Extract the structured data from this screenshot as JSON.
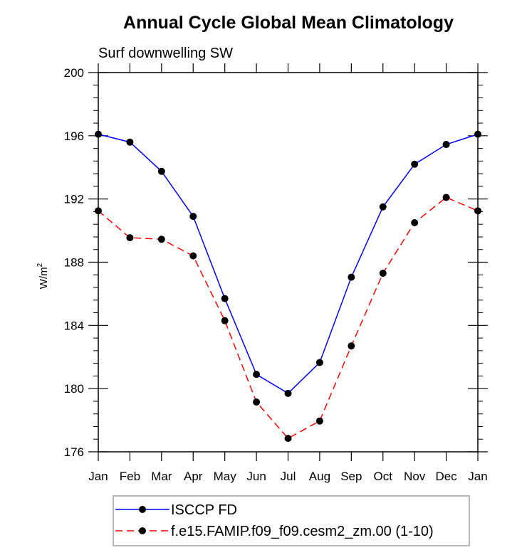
{
  "chart_data": {
    "type": "line",
    "title": "Annual Cycle Global Mean Climatology",
    "subtitle": "Surf downwelling SW",
    "xlabel": "",
    "ylabel": "W/m",
    "ylabel_superscript": "2",
    "ylim": [
      176,
      200
    ],
    "yticks": [
      176,
      180,
      184,
      188,
      192,
      196,
      200
    ],
    "ytick_labels": [
      "176",
      "180",
      "184",
      "188",
      "192",
      "196",
      "200"
    ],
    "y_minor_step": 0.8,
    "categories": [
      "Jan",
      "Feb",
      "Mar",
      "Apr",
      "May",
      "Jun",
      "Jul",
      "Aug",
      "Sep",
      "Oct",
      "Nov",
      "Dec",
      "Jan"
    ],
    "grid": false,
    "legend_position": "bottom",
    "series": [
      {
        "name": "ISCCP FD",
        "color": "#0000ff",
        "dash": "solid",
        "marker": "filled-circle",
        "values": [
          196.1,
          195.6,
          193.75,
          190.9,
          185.7,
          180.9,
          179.7,
          181.65,
          187.05,
          191.5,
          194.2,
          195.45,
          196.1
        ]
      },
      {
        "name": "f.e15.FAMIP.f09_f09.cesm2_zm.00 (1-10)",
        "color": "#ff0000",
        "dash": "dashed",
        "marker": "filled-circle",
        "values": [
          191.25,
          189.55,
          189.45,
          188.4,
          184.3,
          179.15,
          176.85,
          177.95,
          182.7,
          187.3,
          190.5,
          192.1,
          191.25
        ]
      }
    ]
  }
}
